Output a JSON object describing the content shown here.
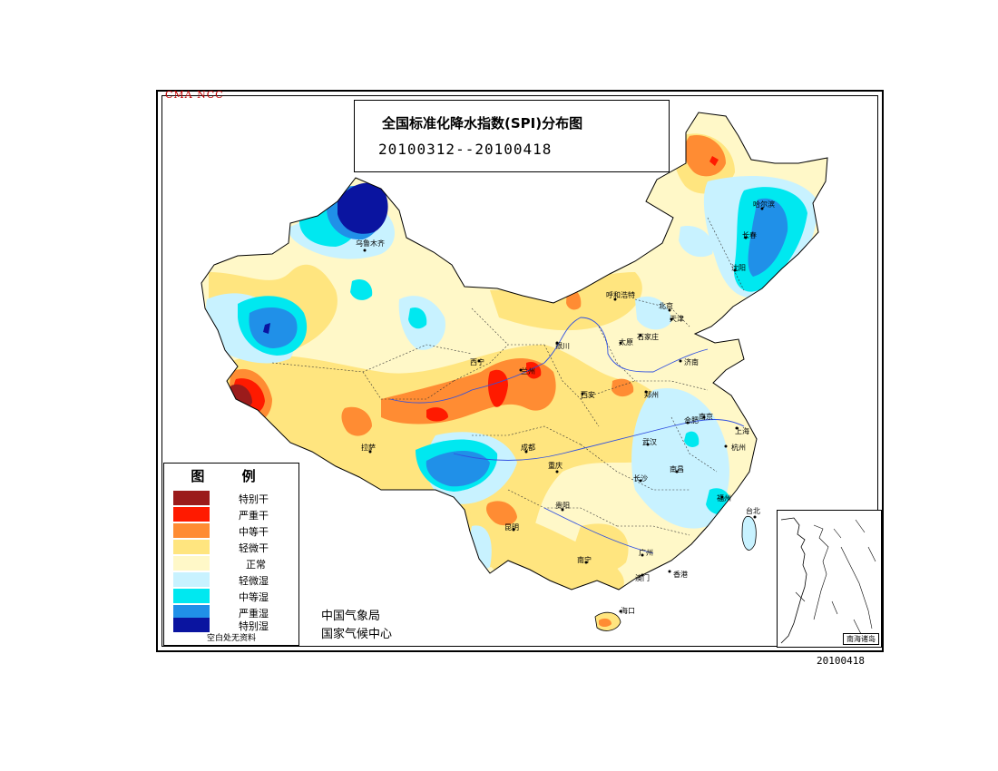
{
  "header": {
    "org_label": "CMA  NCC",
    "title": "全国标准化降水指数(SPI)分布图",
    "date_range": "20100312--20100418"
  },
  "footer": {
    "date_stamp": "20100418",
    "agency_line1": "中国气象局",
    "agency_line2": "国家气候中心"
  },
  "legend": {
    "title": "图 例",
    "items": [
      {
        "label": "特别干",
        "color": "#9b1b1b"
      },
      {
        "label": "严重干",
        "color": "#ff1a00"
      },
      {
        "label": "中等干",
        "color": "#ff8c33"
      },
      {
        "label": "轻微干",
        "color": "#ffe57f"
      },
      {
        "label": "正常",
        "color": "#fff8c8"
      },
      {
        "label": "轻微湿",
        "color": "#c8f2ff"
      },
      {
        "label": "中等湿",
        "color": "#00e8f0"
      },
      {
        "label": "严重湿",
        "color": "#2090e8"
      },
      {
        "label": "特别湿",
        "color": "#0a14a0"
      }
    ],
    "note": "空白处无资料"
  },
  "inset": {
    "label": "南海诸岛"
  },
  "cities": [
    {
      "name": "乌鲁木齐"
    },
    {
      "name": "哈尔滨"
    },
    {
      "name": "长春"
    },
    {
      "name": "沈阳"
    },
    {
      "name": "呼和浩特"
    },
    {
      "name": "北京"
    },
    {
      "name": "天津"
    },
    {
      "name": "太原"
    },
    {
      "name": "石家庄"
    },
    {
      "name": "济南"
    },
    {
      "name": "银川"
    },
    {
      "name": "西宁"
    },
    {
      "name": "兰州"
    },
    {
      "name": "西安"
    },
    {
      "name": "郑州"
    },
    {
      "name": "合肥"
    },
    {
      "name": "南京"
    },
    {
      "name": "上海"
    },
    {
      "name": "杭州"
    },
    {
      "name": "武汉"
    },
    {
      "name": "南昌"
    },
    {
      "name": "福州"
    },
    {
      "name": "台北"
    },
    {
      "name": "拉萨"
    },
    {
      "name": "成都"
    },
    {
      "name": "重庆"
    },
    {
      "name": "贵阳"
    },
    {
      "name": "长沙"
    },
    {
      "name": "昆明"
    },
    {
      "name": "南宁"
    },
    {
      "name": "广州"
    },
    {
      "name": "澳门"
    },
    {
      "name": "香港"
    },
    {
      "name": "海口"
    }
  ]
}
